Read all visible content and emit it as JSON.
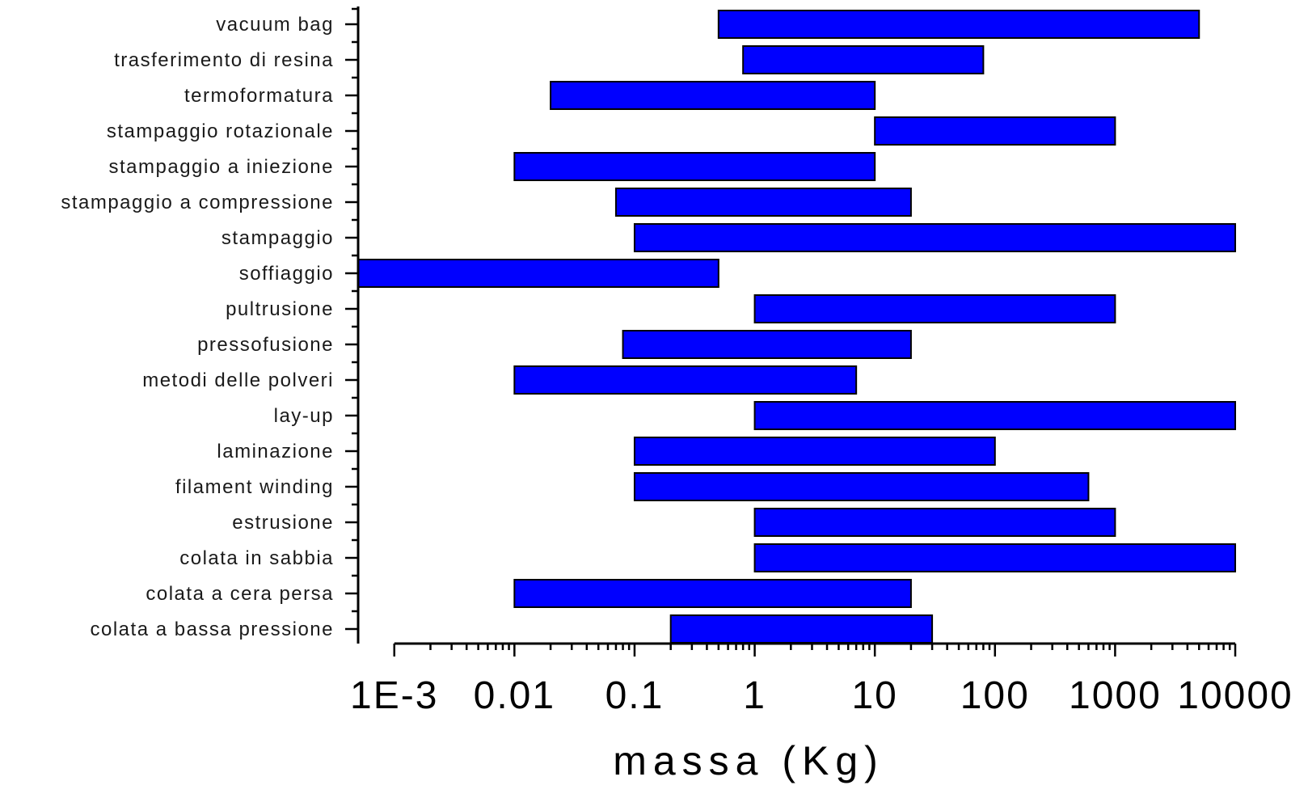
{
  "chart_data": {
    "type": "bar",
    "orientation": "horizontal",
    "bar_style": "floating-range",
    "bar_color": "#0000ff",
    "bar_edge_color": "#000000",
    "xscale": "log",
    "xlim": [
      0.0005,
      10000
    ],
    "xlabel": "massa (Kg)",
    "xticks": [
      {
        "value": 0.001,
        "label": "1E-3"
      },
      {
        "value": 0.01,
        "label": "0.01"
      },
      {
        "value": 0.1,
        "label": "0.1"
      },
      {
        "value": 1,
        "label": "1"
      },
      {
        "value": 10,
        "label": "10"
      },
      {
        "value": 100,
        "label": "100"
      },
      {
        "value": 1000,
        "label": "1000"
      },
      {
        "value": 10000,
        "label": "10000"
      }
    ],
    "grid": false,
    "legend": "none",
    "categories": [
      "vacuum bag",
      "trasferimento di resina",
      "termoformatura",
      "stampaggio rotazionale",
      "stampaggio a iniezione",
      "stampaggio a compressione",
      "stampaggio",
      "soffiaggio",
      "pultrusione",
      "pressofusione",
      "metodi delle polveri",
      "lay-up",
      "laminazione",
      "filament winding",
      "estrusione",
      "colata in sabbia",
      "colata a cera persa",
      "colata a bassa pressione"
    ],
    "ranges": [
      [
        0.5,
        5000
      ],
      [
        0.8,
        80
      ],
      [
        0.02,
        10
      ],
      [
        10,
        1000
      ],
      [
        0.01,
        10
      ],
      [
        0.07,
        20
      ],
      [
        0.1,
        10000
      ],
      [
        0.0005,
        0.5
      ],
      [
        1,
        1000
      ],
      [
        0.08,
        20
      ],
      [
        0.01,
        7
      ],
      [
        1,
        10000
      ],
      [
        0.1,
        100
      ],
      [
        0.1,
        600
      ],
      [
        1,
        1000
      ],
      [
        1,
        10000
      ],
      [
        0.01,
        20
      ],
      [
        0.2,
        30
      ]
    ]
  }
}
